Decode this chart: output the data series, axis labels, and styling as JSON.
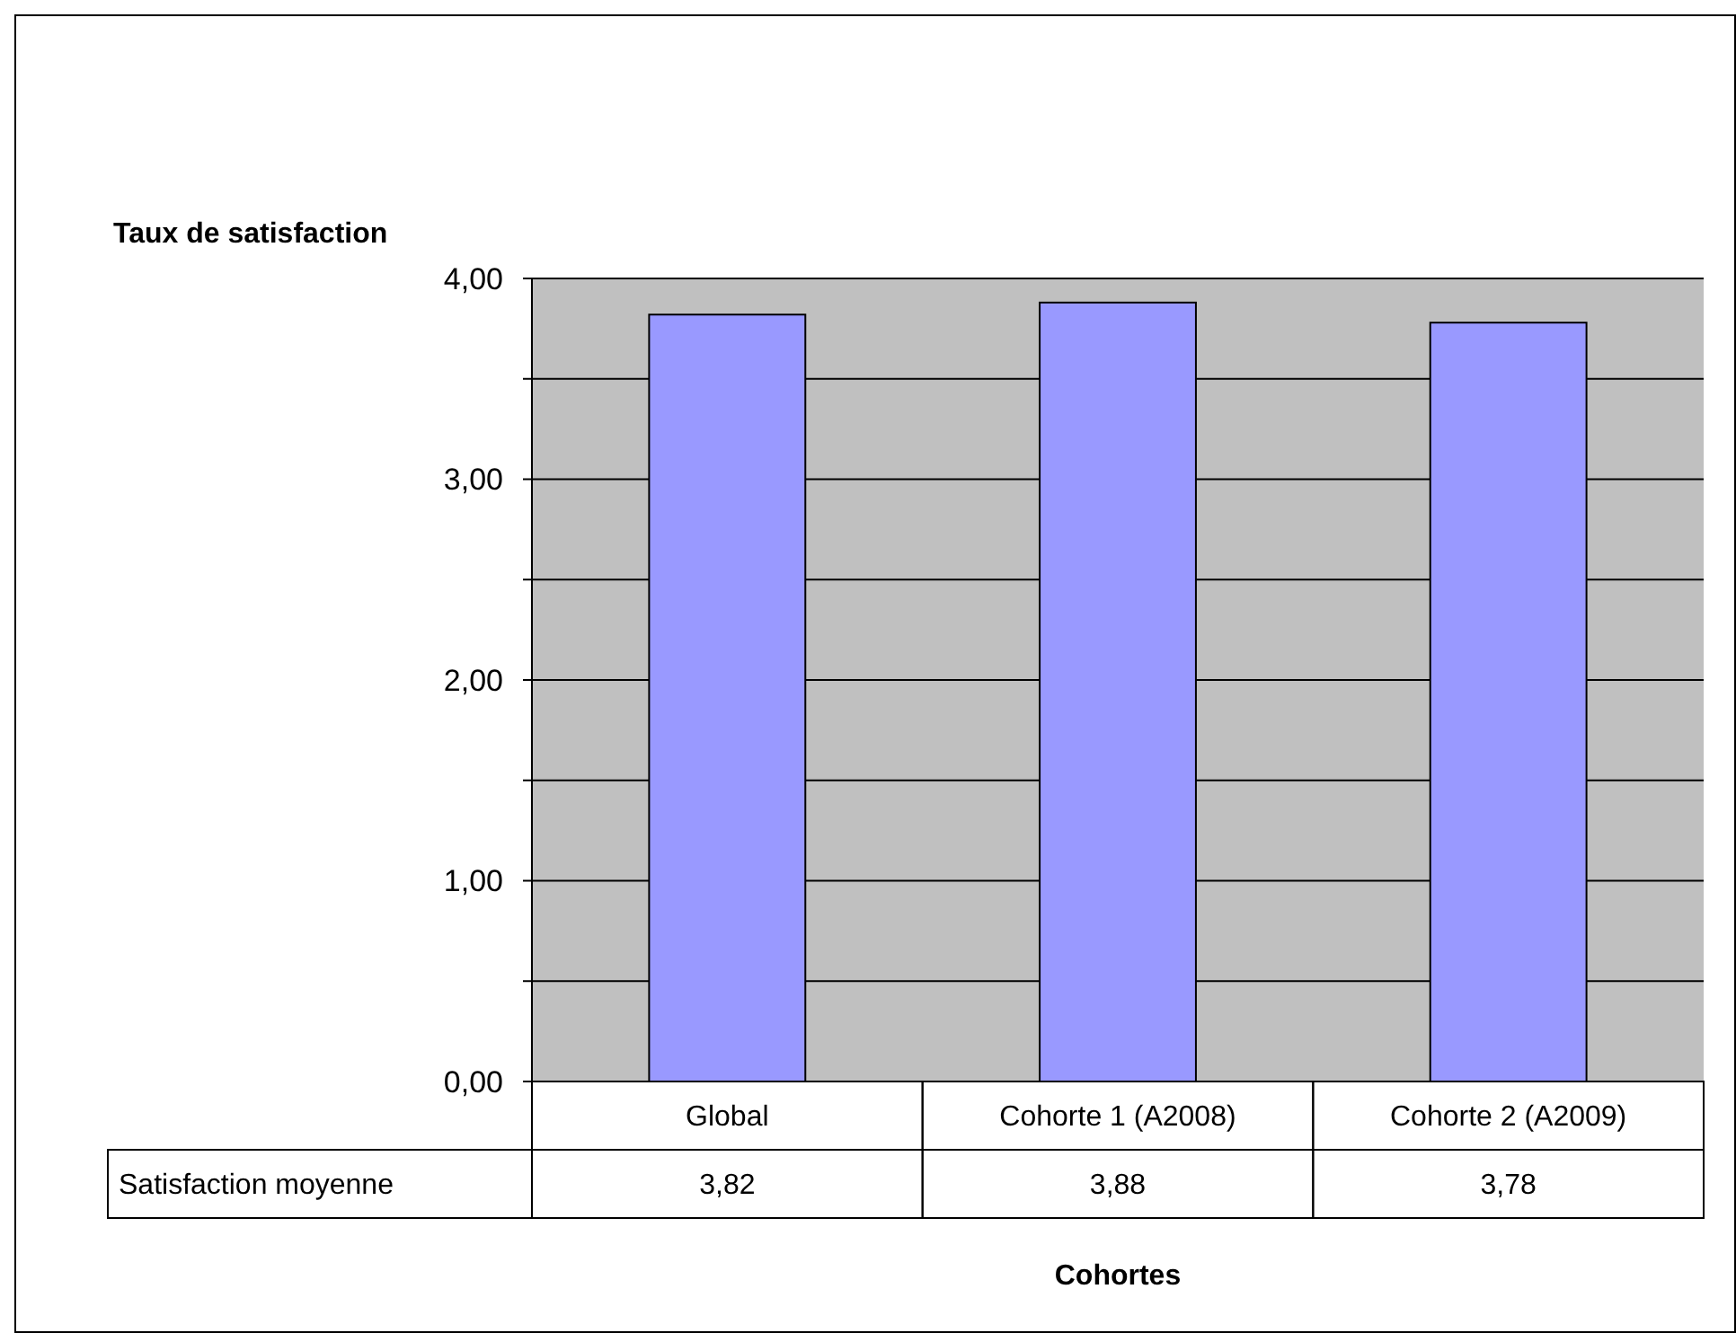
{
  "chart_data": {
    "type": "bar",
    "ylabel": "Taux de satisfaction",
    "xlabel": "Cohortes",
    "categories": [
      "Global",
      "Cohorte 1 (A2008)",
      "Cohorte 2 (A2009)"
    ],
    "series": [
      {
        "name": "Satisfaction moyenne",
        "color": "#9999ff",
        "values": [
          3.82,
          3.88,
          3.78
        ],
        "value_labels": [
          "3,82",
          "3,88",
          "3,78"
        ]
      }
    ],
    "ylim": [
      0,
      4
    ],
    "yticks": [
      {
        "value": 0,
        "label": "0,00"
      },
      {
        "value": 0.5,
        "label": null
      },
      {
        "value": 1,
        "label": "1,00"
      },
      {
        "value": 1.5,
        "label": null
      },
      {
        "value": 2,
        "label": "2,00"
      },
      {
        "value": 2.5,
        "label": null
      },
      {
        "value": 3,
        "label": "3,00"
      },
      {
        "value": 3.5,
        "label": null
      },
      {
        "value": 4,
        "label": "4,00"
      }
    ],
    "grid": true
  }
}
